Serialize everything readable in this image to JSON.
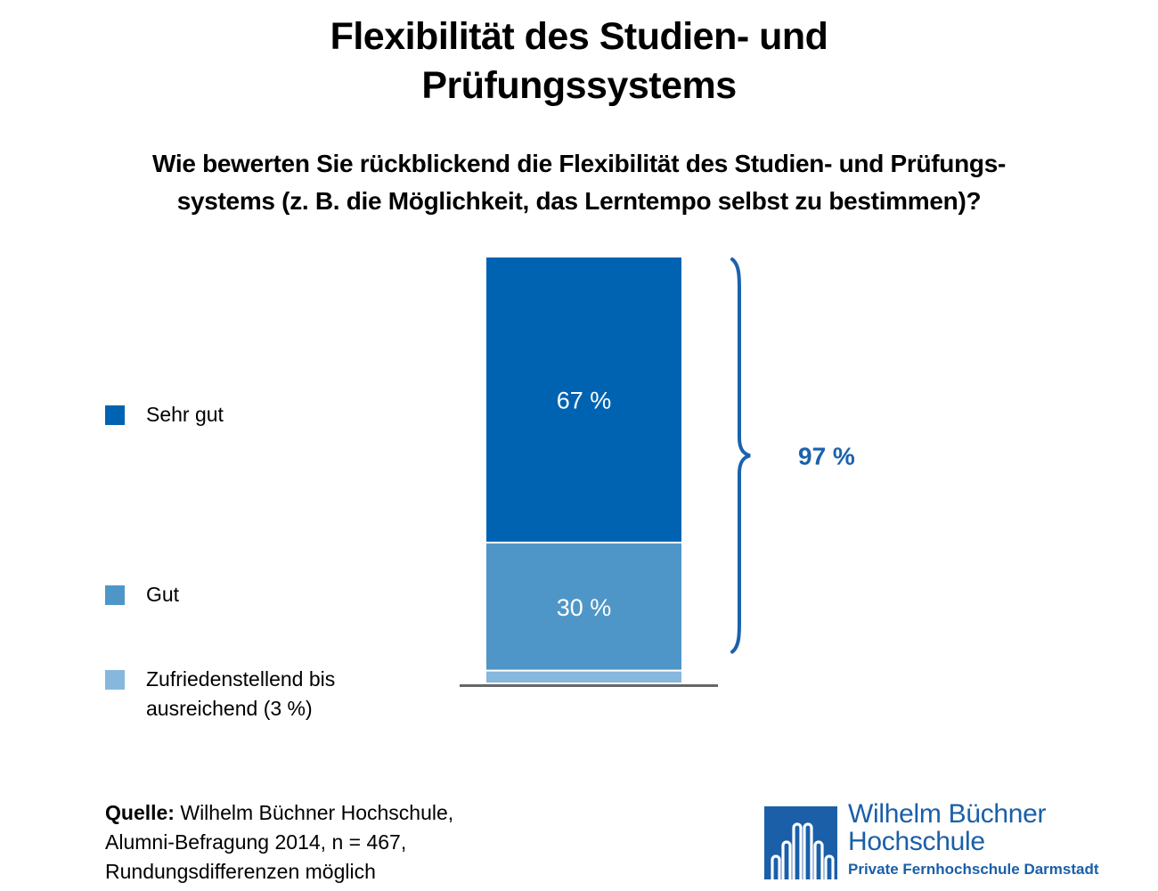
{
  "title": {
    "line1": "Flexibilität des Studien- und",
    "line2": "Prüfungssystems"
  },
  "subtitle": {
    "line1": "Wie bewerten Sie rückblickend die Flexibilität des Studien- und Prüfungs-",
    "line2": "systems (z. B. die Möglichkeit, das Lerntempo selbst zu bestimmen)?"
  },
  "legend": [
    {
      "lines": [
        "Sehr gut"
      ],
      "color": "#0063b1"
    },
    {
      "lines": [
        "Gut"
      ],
      "color": "#4f96c8"
    },
    {
      "lines": [
        "Zufriedenstellend bis",
        "ausreichend (3 %)"
      ],
      "color": "#86b7dd"
    }
  ],
  "chart_data": {
    "type": "bar",
    "stacked": true,
    "categories": [
      ""
    ],
    "series": [
      {
        "name": "Zufriedenstellend bis ausreichend (3 %)",
        "values": [
          3
        ],
        "label": "",
        "color": "#86b7dd"
      },
      {
        "name": "Gut",
        "values": [
          30
        ],
        "label": "30 %",
        "color": "#4f96c8"
      },
      {
        "name": "Sehr gut",
        "values": [
          67
        ],
        "label": "67 %",
        "color": "#0063b1"
      }
    ],
    "ylim": [
      0,
      100
    ],
    "bracket": {
      "from_value": 3,
      "to_value": 100,
      "label": "97 %",
      "color": "#1a63ad"
    },
    "baseline_color": "#666666",
    "grid": false,
    "legend_position": "left"
  },
  "source": {
    "label": "Quelle:",
    "line1": " Wilhelm Büchner Hochschule,",
    "line2": "Alumni-Befragung 2014, n = 467,",
    "line3": "Rundungsdifferenzen möglich"
  },
  "logo": {
    "name_line1": "Wilhelm Büchner",
    "name_line2": "Hochschule",
    "subline": "Private Fernhochschule Darmstadt",
    "color": "#1a5fa8"
  }
}
